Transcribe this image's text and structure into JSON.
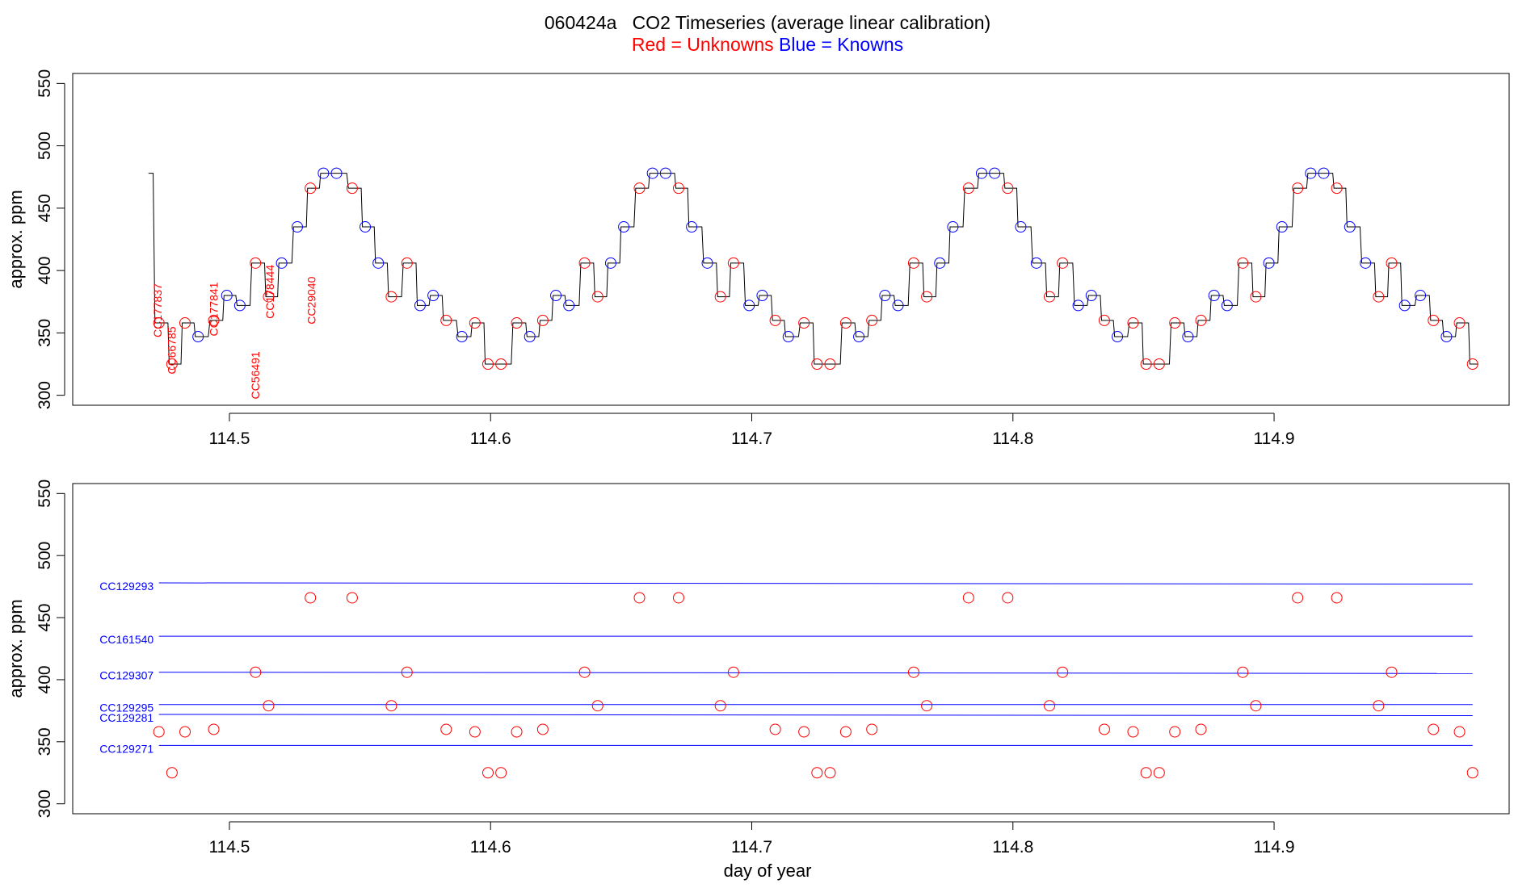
{
  "title": "060424a   CO2 Timeseries (average linear calibration)",
  "legend": {
    "unknowns": "Red = Unknowns",
    "knowns": "Blue = Knowns"
  },
  "colors": {
    "unknown": "#ff0000",
    "known": "#0000ff",
    "trace": "#000000"
  },
  "chart_data": [
    {
      "type": "line",
      "title": "060424a   CO2 Timeseries (average linear calibration)",
      "xlabel": "",
      "ylabel": "approx. ppm",
      "xlim": [
        114.44,
        114.99
      ],
      "ylim": [
        292,
        558
      ],
      "xticks": [
        114.5,
        114.6,
        114.7,
        114.8,
        114.9
      ],
      "xtick_labels": [
        "114.5",
        "114.6",
        "114.7",
        "114.8",
        "114.9"
      ],
      "yticks": [
        300,
        350,
        400,
        450,
        500,
        550
      ],
      "ytick_labels": [
        "300",
        "350",
        "400",
        "450",
        "500",
        "550"
      ],
      "trace_start": {
        "x": 114.469,
        "y": 478
      },
      "series": [
        {
          "kind": "unknown",
          "points": [
            [
              114.473,
              358
            ],
            [
              114.478,
              325
            ],
            [
              114.483,
              358
            ],
            [
              114.494,
              360
            ],
            [
              114.51,
              406
            ],
            [
              114.515,
              379
            ],
            [
              114.531,
              466
            ],
            [
              114.547,
              466
            ],
            [
              114.562,
              379
            ],
            [
              114.568,
              406
            ],
            [
              114.583,
              360
            ],
            [
              114.594,
              358
            ],
            [
              114.599,
              325
            ],
            [
              114.604,
              325
            ],
            [
              114.61,
              358
            ],
            [
              114.62,
              360
            ],
            [
              114.636,
              406
            ],
            [
              114.641,
              379
            ],
            [
              114.657,
              466
            ],
            [
              114.672,
              466
            ],
            [
              114.688,
              379
            ],
            [
              114.693,
              406
            ],
            [
              114.709,
              360
            ],
            [
              114.72,
              358
            ],
            [
              114.725,
              325
            ],
            [
              114.73,
              325
            ],
            [
              114.736,
              358
            ],
            [
              114.746,
              360
            ],
            [
              114.762,
              406
            ],
            [
              114.767,
              379
            ],
            [
              114.783,
              466
            ],
            [
              114.798,
              466
            ],
            [
              114.814,
              379
            ],
            [
              114.819,
              406
            ],
            [
              114.835,
              360
            ],
            [
              114.846,
              358
            ],
            [
              114.851,
              325
            ],
            [
              114.856,
              325
            ],
            [
              114.862,
              358
            ],
            [
              114.872,
              360
            ],
            [
              114.888,
              406
            ],
            [
              114.893,
              379
            ],
            [
              114.909,
              466
            ],
            [
              114.924,
              466
            ],
            [
              114.94,
              379
            ],
            [
              114.945,
              406
            ],
            [
              114.961,
              360
            ],
            [
              114.971,
              358
            ],
            [
              114.976,
              325
            ]
          ]
        },
        {
          "kind": "known",
          "points": [
            [
              114.488,
              347
            ],
            [
              114.499,
              380
            ],
            [
              114.504,
              372
            ],
            [
              114.52,
              406
            ],
            [
              114.526,
              435
            ],
            [
              114.536,
              478
            ],
            [
              114.541,
              478
            ],
            [
              114.552,
              435
            ],
            [
              114.557,
              406
            ],
            [
              114.573,
              372
            ],
            [
              114.578,
              380
            ],
            [
              114.589,
              347
            ],
            [
              114.615,
              347
            ],
            [
              114.625,
              380
            ],
            [
              114.63,
              372
            ],
            [
              114.646,
              406
            ],
            [
              114.651,
              435
            ],
            [
              114.662,
              478
            ],
            [
              114.667,
              478
            ],
            [
              114.677,
              435
            ],
            [
              114.683,
              406
            ],
            [
              114.699,
              372
            ],
            [
              114.704,
              380
            ],
            [
              114.714,
              347
            ],
            [
              114.741,
              347
            ],
            [
              114.751,
              380
            ],
            [
              114.756,
              372
            ],
            [
              114.772,
              406
            ],
            [
              114.777,
              435
            ],
            [
              114.788,
              478
            ],
            [
              114.793,
              478
            ],
            [
              114.803,
              435
            ],
            [
              114.809,
              406
            ],
            [
              114.825,
              372
            ],
            [
              114.83,
              380
            ],
            [
              114.84,
              347
            ],
            [
              114.867,
              347
            ],
            [
              114.877,
              380
            ],
            [
              114.882,
              372
            ],
            [
              114.898,
              406
            ],
            [
              114.903,
              435
            ],
            [
              114.914,
              478
            ],
            [
              114.919,
              478
            ],
            [
              114.929,
              435
            ],
            [
              114.935,
              406
            ],
            [
              114.95,
              372
            ],
            [
              114.956,
              380
            ],
            [
              114.966,
              347
            ]
          ]
        }
      ],
      "annotations": [
        {
          "text": "CC177837",
          "x": 114.474,
          "y": 368
        },
        {
          "text": "CC66785",
          "x": 114.4795,
          "y": 336
        },
        {
          "text": "CC177841",
          "x": 114.4955,
          "y": 369
        },
        {
          "text": "CC56491",
          "x": 114.5115,
          "y": 316
        },
        {
          "text": "CC178444",
          "x": 114.517,
          "y": 383
        },
        {
          "text": "CC29040",
          "x": 114.533,
          "y": 376
        }
      ]
    },
    {
      "type": "scatter",
      "title": "",
      "xlabel": "day of year",
      "ylabel": "approx. ppm",
      "xlim": [
        114.44,
        114.99
      ],
      "ylim": [
        292,
        558
      ],
      "xticks": [
        114.5,
        114.6,
        114.7,
        114.8,
        114.9
      ],
      "xtick_labels": [
        "114.5",
        "114.6",
        "114.7",
        "114.8",
        "114.9"
      ],
      "yticks": [
        300,
        350,
        400,
        450,
        500,
        550
      ],
      "ytick_labels": [
        "300",
        "350",
        "400",
        "450",
        "500",
        "550"
      ],
      "reference_lines": [
        {
          "name": "CC129293",
          "y_start": 478,
          "y_end": 477,
          "x_start": 114.473,
          "x_end": 114.976
        },
        {
          "name": "CC161540",
          "y_start": 435,
          "y_end": 435,
          "x_start": 114.473,
          "x_end": 114.976
        },
        {
          "name": "CC129307",
          "y_start": 406,
          "y_end": 405,
          "x_start": 114.473,
          "x_end": 114.976
        },
        {
          "name": "CC129295",
          "y_start": 380,
          "y_end": 380,
          "x_start": 114.473,
          "x_end": 114.976
        },
        {
          "name": "CC129281",
          "y_start": 372,
          "y_end": 371,
          "x_start": 114.473,
          "x_end": 114.976
        },
        {
          "name": "CC129271",
          "y_start": 347,
          "y_end": 347,
          "x_start": 114.473,
          "x_end": 114.976
        }
      ],
      "reference_label_order": [
        "CC129293",
        "CC161540",
        "CC129307",
        "CC129295",
        "CC129281",
        "CC129271"
      ],
      "points_source": "unknown series of panel 1"
    }
  ],
  "axes_text": {
    "ylabel": "approx. ppm",
    "xlabel": "day of year"
  }
}
